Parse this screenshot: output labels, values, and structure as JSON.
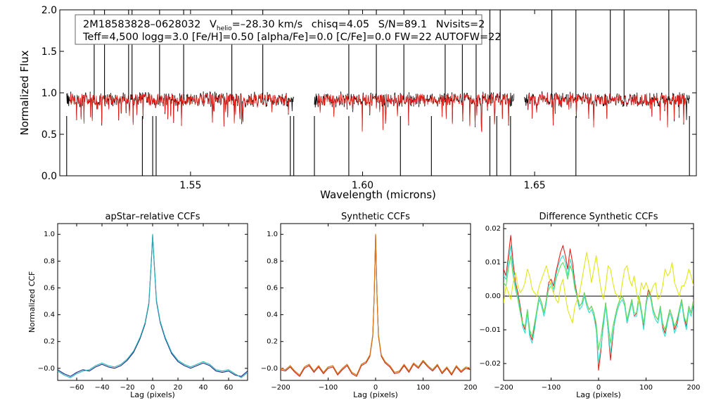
{
  "colors": {
    "observed": "#000000",
    "model": "#e8201a",
    "ccf_dark": "#1b2a8c",
    "ccf_cyan": "#2ab3b3",
    "syn_orange": "#e07a1a",
    "syn_green": "#3a9a3a",
    "syn_red": "#c8281e",
    "diff_red": "#e8201a",
    "diff_cyan": "#35e0d0",
    "diff_yellow": "#e0e61a",
    "diff_green": "#60e060"
  },
  "info": {
    "star_id": "2M18583828–0628032",
    "vhelio_prefix": "V",
    "vhelio_sub": "helio",
    "vhelio_value": "=–28.30 km/s",
    "chisq": "chisq=4.05",
    "snr": "S/N=89.1",
    "nvisits": "Nvisits=2",
    "line2": "Teff=4,500 logg=3.0 [Fe/H]=0.50 [alpha/Fe]=0.0 [C/Fe]=0.0 FW=22 AUTOFW=22"
  },
  "chart_data": [
    {
      "type": "line",
      "name": "spectrum",
      "title": "",
      "xlabel": "Wavelength (microns)",
      "ylabel": "Normalized Flux",
      "xlim": [
        1.512,
        1.697
      ],
      "ylim": [
        0.0,
        2.0
      ],
      "xticks": [
        "1.55",
        "1.60",
        "1.65"
      ],
      "xtick_values": [
        1.55,
        1.6,
        1.65
      ],
      "yticks": [
        "0.0",
        "0.5",
        "1.0",
        "1.5",
        "2.0"
      ],
      "ytick_values": [
        0.0,
        0.5,
        1.0,
        1.5,
        2.0
      ],
      "chips": [
        [
          1.514,
          1.58
        ],
        [
          1.586,
          1.644
        ],
        [
          1.647,
          1.695
        ]
      ],
      "continuum": 0.92,
      "emission_spikes": [
        1.522,
        1.525,
        1.532,
        1.533,
        1.541,
        1.548,
        1.562,
        1.571,
        1.596,
        1.604,
        1.612,
        1.624,
        1.629,
        1.633,
        1.637,
        1.64,
        1.655,
        1.662,
        1.672,
        1.676,
        1.689
      ],
      "absorption_drops": [
        1.514,
        1.536,
        1.539,
        1.54,
        1.579,
        1.58,
        1.586,
        1.596,
        1.611,
        1.62,
        1.637,
        1.639,
        1.643,
        1.662,
        1.695
      ],
      "series": [
        {
          "name": "",
          "color_key": "observed"
        },
        {
          "name": "",
          "color_key": "model"
        }
      ]
    },
    {
      "type": "line",
      "name": "apstar-ccf",
      "title": "apStar–relative CCFs",
      "xlabel": "Lag (pixels)",
      "ylabel": "Normalized CCF",
      "xlim": [
        -75,
        75
      ],
      "ylim": [
        -0.09,
        1.08
      ],
      "xticks": [
        "−60",
        "−40",
        "−20",
        "0",
        "20",
        "40",
        "60"
      ],
      "xtick_values": [
        -60,
        -40,
        -20,
        0,
        20,
        40,
        60
      ],
      "yticks": [
        "−0.0",
        "0.2",
        "0.4",
        "0.6",
        "0.8",
        "1.0"
      ],
      "ytick_values": [
        0.0,
        0.2,
        0.4,
        0.6,
        0.8,
        1.0
      ],
      "x": [
        -75,
        -70,
        -65,
        -60,
        -55,
        -50,
        -45,
        -40,
        -35,
        -30,
        -25,
        -20,
        -15,
        -10,
        -6,
        -3,
        -1,
        0,
        1,
        3,
        6,
        10,
        15,
        20,
        25,
        30,
        35,
        40,
        45,
        50,
        55,
        60,
        65,
        70,
        75
      ],
      "series": [
        {
          "name": "",
          "color_key": "ccf_dark",
          "values": [
            -0.01,
            -0.04,
            -0.06,
            -0.03,
            -0.01,
            -0.02,
            0.01,
            0.03,
            0.01,
            0.0,
            0.02,
            0.06,
            0.12,
            0.22,
            0.33,
            0.48,
            0.8,
            0.99,
            0.82,
            0.5,
            0.34,
            0.22,
            0.11,
            0.05,
            0.02,
            0.0,
            0.02,
            0.04,
            0.02,
            -0.02,
            -0.03,
            -0.02,
            -0.05,
            -0.06,
            -0.02
          ]
        },
        {
          "name": "",
          "color_key": "ccf_cyan",
          "values": [
            -0.02,
            -0.05,
            -0.07,
            -0.04,
            -0.02,
            -0.01,
            0.02,
            0.04,
            0.02,
            0.01,
            0.03,
            0.07,
            0.13,
            0.23,
            0.34,
            0.49,
            0.81,
            1.0,
            0.83,
            0.51,
            0.35,
            0.23,
            0.12,
            0.06,
            0.03,
            0.01,
            0.03,
            0.05,
            0.03,
            -0.01,
            -0.02,
            -0.01,
            -0.04,
            -0.07,
            -0.03
          ]
        }
      ]
    },
    {
      "type": "line",
      "name": "synthetic-ccf",
      "title": "Synthetic CCFs",
      "xlabel": "Lag (pixels)",
      "ylabel": "",
      "xlim": [
        -200,
        200
      ],
      "ylim": [
        -0.09,
        1.08
      ],
      "xticks": [
        "−200",
        "−100",
        "0",
        "100",
        "200"
      ],
      "xtick_values": [
        -200,
        -100,
        0,
        100,
        200
      ],
      "yticks": [
        "−0.0",
        "0.2",
        "0.4",
        "0.6",
        "0.8",
        "1.0"
      ],
      "ytick_values": [
        0.0,
        0.2,
        0.4,
        0.6,
        0.8,
        1.0
      ],
      "x": [
        -200,
        -190,
        -180,
        -170,
        -160,
        -150,
        -140,
        -130,
        -120,
        -110,
        -100,
        -90,
        -80,
        -70,
        -60,
        -50,
        -40,
        -30,
        -20,
        -12,
        -6,
        -3,
        0,
        3,
        6,
        12,
        20,
        30,
        40,
        50,
        60,
        70,
        80,
        90,
        100,
        110,
        120,
        130,
        140,
        150,
        160,
        170,
        180,
        190,
        200
      ],
      "series": [
        {
          "name": "",
          "color_key": "syn_green",
          "values": [
            0.0,
            -0.01,
            0.02,
            -0.02,
            -0.05,
            0.01,
            0.03,
            -0.02,
            0.02,
            -0.03,
            0.01,
            0.02,
            -0.04,
            0.0,
            0.03,
            -0.03,
            -0.05,
            0.03,
            0.05,
            0.1,
            0.25,
            0.55,
            1.0,
            0.55,
            0.25,
            0.1,
            0.05,
            0.02,
            -0.03,
            -0.02,
            0.03,
            -0.02,
            0.04,
            0.01,
            0.06,
            0.02,
            -0.01,
            0.03,
            -0.03,
            0.01,
            -0.04,
            0.02,
            -0.02,
            0.01,
            0.0
          ]
        },
        {
          "name": "",
          "color_key": "syn_red",
          "values": [
            -0.01,
            -0.02,
            0.01,
            -0.03,
            -0.06,
            0.0,
            0.02,
            -0.03,
            0.01,
            -0.04,
            0.0,
            0.01,
            -0.05,
            -0.01,
            0.02,
            -0.04,
            -0.06,
            0.02,
            0.04,
            0.09,
            0.24,
            0.54,
            0.99,
            0.54,
            0.24,
            0.09,
            0.04,
            0.01,
            -0.04,
            -0.03,
            0.02,
            -0.03,
            0.03,
            0.0,
            0.05,
            0.01,
            -0.02,
            0.02,
            -0.04,
            0.0,
            -0.05,
            0.01,
            -0.03,
            0.0,
            -0.01
          ]
        },
        {
          "name": "",
          "color_key": "syn_orange",
          "values": [
            0.0,
            -0.01,
            0.02,
            -0.02,
            -0.05,
            0.01,
            0.03,
            -0.02,
            0.02,
            -0.03,
            0.01,
            0.02,
            -0.04,
            0.0,
            0.03,
            -0.03,
            -0.05,
            0.03,
            0.05,
            0.1,
            0.25,
            0.55,
            1.0,
            0.55,
            0.25,
            0.1,
            0.05,
            0.02,
            -0.03,
            -0.02,
            0.03,
            -0.02,
            0.04,
            0.01,
            0.06,
            0.02,
            -0.01,
            0.03,
            -0.03,
            0.01,
            -0.04,
            0.02,
            -0.02,
            0.01,
            0.0
          ]
        }
      ]
    },
    {
      "type": "line",
      "name": "difference-ccf",
      "title": "Difference Synthetic CCFs",
      "xlabel": "Lag (pixels)",
      "ylabel": "",
      "xlim": [
        -200,
        200
      ],
      "ylim": [
        -0.025,
        0.0215
      ],
      "xticks": [
        "−200",
        "−100",
        "0",
        "100",
        "200"
      ],
      "xtick_values": [
        -200,
        -100,
        0,
        100,
        200
      ],
      "yticks": [
        "−0.02",
        "−0.01",
        "0.00",
        "0.01",
        "0.02"
      ],
      "ytick_values": [
        -0.02,
        -0.01,
        0.0,
        0.01,
        0.02
      ],
      "zero_line": 0.0,
      "x": [
        -200,
        -195,
        -190,
        -185,
        -180,
        -175,
        -170,
        -165,
        -160,
        -155,
        -150,
        -145,
        -140,
        -135,
        -130,
        -125,
        -120,
        -115,
        -110,
        -105,
        -100,
        -95,
        -90,
        -85,
        -80,
        -75,
        -70,
        -65,
        -60,
        -55,
        -50,
        -45,
        -40,
        -35,
        -30,
        -25,
        -20,
        -15,
        -10,
        -5,
        0,
        5,
        10,
        15,
        20,
        25,
        30,
        35,
        40,
        45,
        50,
        55,
        60,
        65,
        70,
        75,
        80,
        85,
        90,
        95,
        100,
        105,
        110,
        115,
        120,
        125,
        130,
        135,
        140,
        145,
        150,
        155,
        160,
        165,
        170,
        175,
        180,
        185,
        190,
        195,
        200
      ],
      "series": [
        {
          "name": "",
          "color_key": "diff_red",
          "values": [
            0.008,
            0.006,
            0.012,
            0.018,
            0.01,
            0.004,
            0.001,
            -0.003,
            -0.008,
            -0.01,
            -0.004,
            -0.011,
            -0.013,
            -0.009,
            -0.004,
            0.0,
            -0.002,
            -0.005,
            -0.001,
            0.004,
            0.005,
            0.003,
            0.007,
            0.01,
            0.013,
            0.015,
            0.012,
            0.008,
            0.014,
            0.01,
            0.004,
            0.0,
            -0.003,
            -0.002,
            0.001,
            -0.002,
            -0.004,
            -0.003,
            -0.005,
            -0.009,
            -0.022,
            -0.016,
            -0.008,
            -0.002,
            -0.01,
            -0.019,
            -0.012,
            -0.006,
            -0.003,
            -0.001,
            0.0,
            -0.002,
            -0.008,
            -0.004,
            -0.001,
            -0.006,
            -0.005,
            0.0,
            -0.004,
            -0.009,
            -0.002,
            0.002,
            0.0,
            -0.004,
            -0.006,
            -0.007,
            -0.003,
            -0.009,
            -0.011,
            -0.007,
            -0.004,
            -0.006,
            -0.01,
            -0.008,
            -0.004,
            -0.001,
            -0.006,
            -0.009,
            -0.003,
            -0.005,
            -0.001
          ]
        },
        {
          "name": "",
          "color_key": "diff_cyan",
          "values": [
            0.006,
            0.005,
            0.01,
            0.015,
            0.008,
            0.003,
            0.0,
            -0.004,
            -0.009,
            -0.011,
            -0.005,
            -0.012,
            -0.014,
            -0.01,
            -0.005,
            -0.001,
            -0.003,
            -0.006,
            -0.002,
            0.003,
            0.004,
            0.002,
            0.006,
            0.009,
            0.011,
            0.012,
            0.01,
            0.006,
            0.011,
            0.008,
            0.003,
            -0.001,
            -0.004,
            -0.003,
            0.0,
            -0.003,
            -0.005,
            -0.004,
            -0.006,
            -0.01,
            -0.02,
            -0.015,
            -0.009,
            -0.003,
            -0.01,
            -0.017,
            -0.011,
            -0.007,
            -0.004,
            -0.002,
            -0.001,
            -0.003,
            -0.008,
            -0.005,
            -0.002,
            -0.006,
            -0.006,
            -0.001,
            -0.005,
            -0.01,
            -0.003,
            0.001,
            -0.001,
            -0.005,
            -0.007,
            -0.008,
            -0.004,
            -0.01,
            -0.012,
            -0.008,
            -0.005,
            -0.007,
            -0.011,
            -0.009,
            -0.005,
            -0.002,
            -0.007,
            -0.01,
            -0.004,
            -0.006,
            -0.002
          ]
        },
        {
          "name": "",
          "color_key": "diff_green",
          "values": [
            0.004,
            0.003,
            0.008,
            0.012,
            0.006,
            0.002,
            -0.001,
            -0.005,
            -0.008,
            -0.009,
            -0.004,
            -0.01,
            -0.012,
            -0.008,
            -0.004,
            0.0,
            -0.002,
            -0.005,
            -0.001,
            0.002,
            0.003,
            0.001,
            0.005,
            0.007,
            0.009,
            0.01,
            0.008,
            0.005,
            0.009,
            0.007,
            0.002,
            0.0,
            -0.003,
            -0.002,
            0.001,
            -0.002,
            -0.004,
            -0.003,
            -0.005,
            -0.008,
            -0.016,
            -0.012,
            -0.007,
            -0.002,
            -0.008,
            -0.014,
            -0.009,
            -0.006,
            -0.003,
            -0.001,
            0.0,
            -0.002,
            -0.007,
            -0.004,
            -0.001,
            -0.005,
            -0.005,
            0.0,
            -0.004,
            -0.008,
            -0.002,
            0.001,
            0.0,
            -0.004,
            -0.006,
            -0.007,
            -0.003,
            -0.008,
            -0.01,
            -0.007,
            -0.004,
            -0.006,
            -0.009,
            -0.007,
            -0.004,
            -0.001,
            -0.006,
            -0.008,
            -0.003,
            -0.005,
            -0.001
          ]
        },
        {
          "name": "",
          "color_key": "diff_yellow",
          "values": [
            -0.002,
            0.003,
            0.001,
            -0.001,
            0.004,
            0.007,
            0.003,
            0.001,
            0.002,
            0.004,
            0.008,
            0.006,
            0.002,
            0.001,
            0.0,
            0.003,
            0.005,
            0.007,
            0.009,
            0.006,
            0.003,
            0.001,
            -0.001,
            -0.002,
            0.003,
            0.005,
            0.0,
            -0.004,
            -0.006,
            -0.008,
            -0.003,
            -0.001,
            0.001,
            0.005,
            0.009,
            0.013,
            0.009,
            0.004,
            0.008,
            0.012,
            0.007,
            0.002,
            -0.001,
            0.003,
            0.009,
            0.008,
            0.004,
            0.001,
            0.0,
            -0.001,
            0.004,
            0.008,
            0.009,
            0.005,
            0.003,
            0.006,
            0.001,
            -0.002,
            0.004,
            0.002,
            0.004,
            0.002,
            0.001,
            0.003,
            0.004,
            -0.001,
            0.0,
            0.003,
            0.008,
            0.006,
            0.007,
            0.01,
            0.004,
            0.002,
            0.0,
            0.003,
            0.003,
            0.005,
            0.008,
            0.006,
            0.003
          ]
        }
      ]
    }
  ]
}
